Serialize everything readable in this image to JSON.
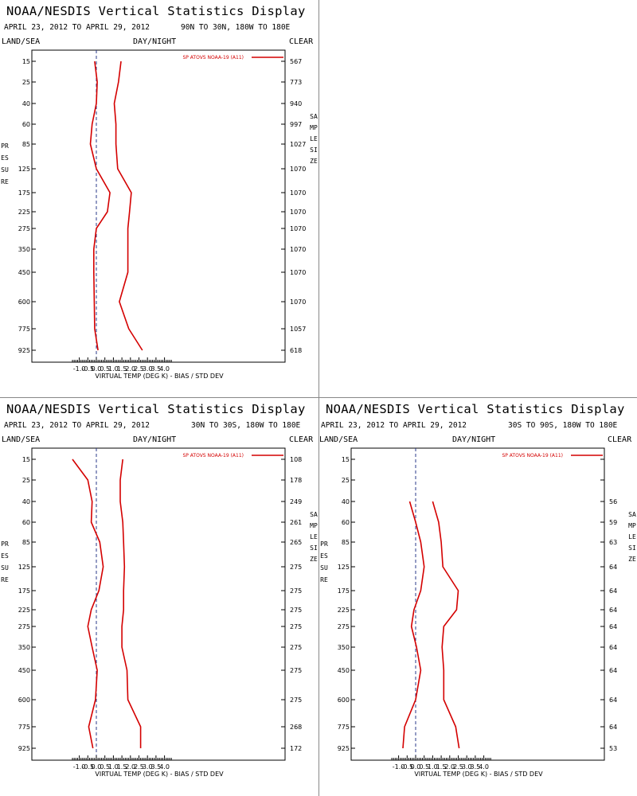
{
  "colors": {
    "line": "#d40000",
    "axis": "#000000",
    "zero": "#2a3a8a"
  },
  "chart_data": [
    {
      "type": "line",
      "title": "NOAA/NESDIS Vertical Statistics Display",
      "date_range": "APRIL 23, 2012 TO APRIL 29, 2012",
      "region": "90N TO 30N, 180W TO 180E",
      "left_label": "LAND/SEA",
      "center_label": "DAY/NIGHT",
      "right_label": "CLEAR",
      "ylabel": "PRESSURE",
      "y2label": "SAMPLE SIZE",
      "xlabel": "VIRTUAL TEMP (DEG K) - BIAS / STD DEV",
      "legend": "SP ATOVS NOAA-19 (A11)",
      "xlim": [
        -1.5,
        4.5
      ],
      "x_ticks": [
        "-1.0",
        "-0.5",
        "0.0",
        "0.5",
        "1.0",
        "1.5",
        "2.0",
        "2.5",
        "3.0",
        "3.5",
        "4.0"
      ],
      "pressure_levels": [
        "15",
        "25",
        "40",
        "60",
        "85",
        "125",
        "175",
        "225",
        "275",
        "350",
        "450",
        "600",
        "775",
        "925"
      ],
      "sample_size": [
        "567",
        "773",
        "940",
        "997",
        "1027",
        "1070",
        "1070",
        "1070",
        "1070",
        "1070",
        "1070",
        "1070",
        "1057",
        "618"
      ],
      "series": [
        {
          "values": [
            -0.1,
            0.05,
            0.0,
            -0.25,
            -0.35,
            0.0,
            0.8,
            0.65,
            0.0,
            -0.15,
            -0.15,
            -0.12,
            -0.1,
            0.1
          ]
        },
        {
          "values": [
            1.45,
            1.3,
            1.05,
            1.15,
            1.15,
            1.25,
            2.05,
            1.95,
            1.85,
            1.85,
            1.85,
            1.35,
            1.9,
            2.7
          ]
        }
      ]
    },
    {
      "type": "line",
      "title": "NOAA/NESDIS Vertical Statistics Display",
      "date_range": "APRIL 23, 2012 TO APRIL 29, 2012",
      "region": "30N TO 30S, 180W TO 180E",
      "left_label": "LAND/SEA",
      "center_label": "DAY/NIGHT",
      "right_label": "CLEAR",
      "ylabel": "PRESSURE",
      "y2label": "SAMPLE SIZE",
      "xlabel": "VIRTUAL TEMP (DEG K) - BIAS / STD DEV",
      "legend": "SP ATOVS NOAA-19 (A11)",
      "xlim": [
        -1.5,
        4.5
      ],
      "x_ticks": [
        "-1.0",
        "-0.5",
        "0.0",
        "0.5",
        "1.0",
        "1.5",
        "2.0",
        "2.5",
        "3.0",
        "3.5",
        "4.0"
      ],
      "pressure_levels": [
        "15",
        "25",
        "40",
        "60",
        "85",
        "125",
        "175",
        "225",
        "275",
        "350",
        "450",
        "600",
        "775",
        "925"
      ],
      "sample_size": [
        "108",
        "178",
        "249",
        "261",
        "265",
        "275",
        "275",
        "275",
        "275",
        "275",
        "275",
        "275",
        "268",
        "172"
      ],
      "series": [
        {
          "values": [
            -1.4,
            -0.5,
            -0.25,
            -0.3,
            0.2,
            0.4,
            0.15,
            -0.3,
            -0.5,
            -0.25,
            0.05,
            -0.05,
            -0.45,
            -0.2
          ]
        },
        {
          "values": [
            1.55,
            1.4,
            1.4,
            1.55,
            1.6,
            1.65,
            1.6,
            1.6,
            1.5,
            1.5,
            1.8,
            1.85,
            2.6,
            2.6
          ]
        }
      ]
    },
    {
      "type": "line",
      "title": "NOAA/NESDIS Vertical Statistics Display",
      "date_range": "APRIL 23, 2012 TO APRIL 29, 2012",
      "region": "30S TO 90S, 180W TO 180E",
      "left_label": "LAND/SEA",
      "center_label": "DAY/NIGHT",
      "right_label": "CLEAR",
      "ylabel": "PRESSURE",
      "y2label": "SAMPLE SIZE",
      "xlabel": "VIRTUAL TEMP (DEG K) - BIAS / STD DEV",
      "legend": "SP ATOVS NOAA-19 (A11)",
      "xlim": [
        -1.5,
        4.5
      ],
      "x_ticks": [
        "-1.0",
        "-0.5",
        "0.0",
        "0.5",
        "1.0",
        "1.5",
        "2.0",
        "2.5",
        "3.0",
        "3.5",
        "4.0"
      ],
      "pressure_levels": [
        "15",
        "25",
        "40",
        "60",
        "85",
        "125",
        "175",
        "225",
        "275",
        "350",
        "450",
        "600",
        "775",
        "925"
      ],
      "sample_size": [
        "",
        "",
        "56",
        "59",
        "63",
        "64",
        "64",
        "64",
        "64",
        "64",
        "64",
        "64",
        "64",
        "53"
      ],
      "series": [
        {
          "start_level": 2,
          "values": [
            -0.35,
            0.0,
            0.3,
            0.5,
            0.3,
            -0.1,
            -0.25,
            0.05,
            0.3,
            0.0,
            -0.65,
            -0.75
          ]
        },
        {
          "start_level": 2,
          "values": [
            1.0,
            1.35,
            1.5,
            1.6,
            2.5,
            2.4,
            1.65,
            1.55,
            1.65,
            1.65,
            2.35,
            2.55
          ]
        }
      ]
    }
  ]
}
